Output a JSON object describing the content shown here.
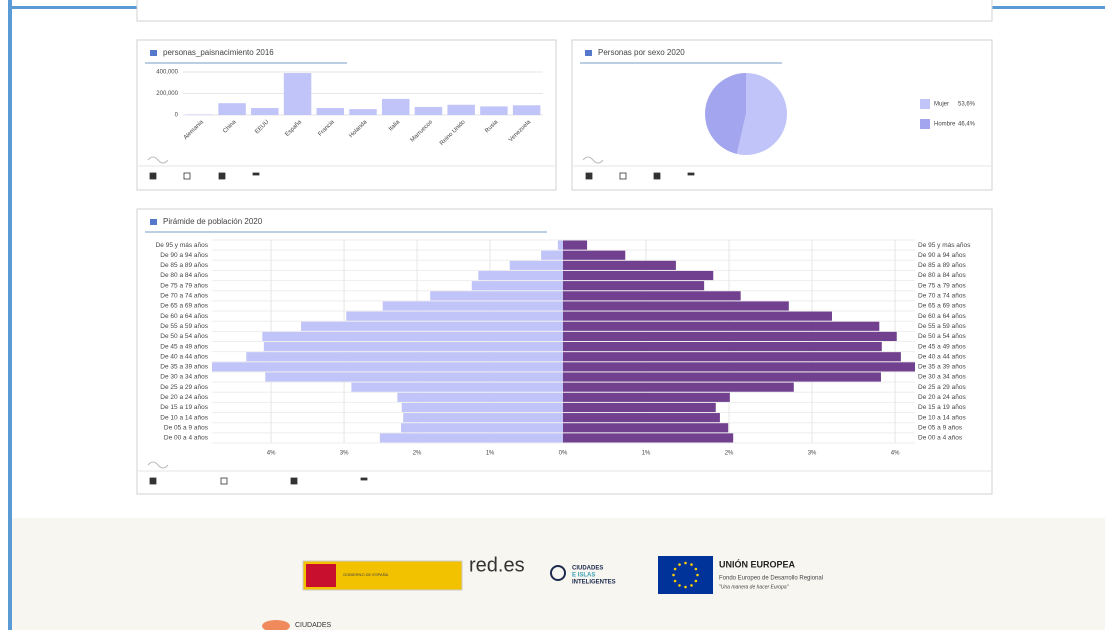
{
  "chart_data": [
    {
      "type": "bar",
      "title": "personas_paisnacimiento 2016",
      "categories": [
        "Alemania",
        "China",
        "EEUU",
        "España",
        "Francia",
        "Holanda",
        "Italia",
        "Marruecos",
        "Reino Unido",
        "Rusia",
        "Venezuela"
      ],
      "values": [
        5000,
        110000,
        65000,
        390000,
        65000,
        55000,
        150000,
        75000,
        95000,
        80000,
        90000
      ],
      "color": "#c0c4f8",
      "ylim": [
        0,
        400000
      ],
      "yticks": [
        0,
        {
          "value": 200000,
          "label": "200,000"
        },
        {
          "value": 400000,
          "label": "400,000"
        }
      ]
    },
    {
      "type": "pie",
      "title": "Personas por sexo 2020",
      "categories": [
        "Mujer",
        "Hombre"
      ],
      "values": [
        53.6,
        46.4
      ],
      "value_labels": [
        "53,6%",
        "46,4%"
      ],
      "colors": [
        "#c0c4f8",
        "#a3a6ee"
      ]
    },
    {
      "type": "pyramid",
      "title": "Pirámide de población 2020",
      "categories": [
        "De 95 y más años",
        "De 90 a 94 años",
        "De 85 a 89 años",
        "De 80 a 84 años",
        "De 75 a 79 años",
        "De 70 a 74 años",
        "De 65 a 69 años",
        "De 60 a 64 años",
        "De 55 a 59 años",
        "De 50 a 54 años",
        "De 45 a 49 años",
        "De 40 a 44 años",
        "De 35 a 39 años",
        "De 30 a 34 años",
        "De 25 a 29 años",
        "De 20 a 24 años",
        "De 15 a 19 años",
        "De 10 a 14 años",
        "De 05 a 9 años",
        "De 00 a 4 años"
      ],
      "series": [
        {
          "color": "#c0c4f8",
          "values": [
            0.07,
            0.3,
            0.73,
            1.16,
            1.25,
            1.82,
            2.47,
            2.97,
            3.59,
            4.12,
            4.1,
            4.34,
            4.81,
            4.08,
            2.9,
            2.27,
            2.21,
            2.19,
            2.22,
            2.51
          ]
        },
        {
          "color": "#71408f",
          "values": [
            0.29,
            0.75,
            1.36,
            1.81,
            1.7,
            2.14,
            2.72,
            3.24,
            3.81,
            4.02,
            3.84,
            4.07,
            4.24,
            3.83,
            2.78,
            2.01,
            1.84,
            1.89,
            1.99,
            2.05
          ]
        }
      ],
      "xlim_left": [
        0,
        4.81
      ],
      "xticks_left": [
        {
          "value": 4,
          "label": "4%"
        },
        {
          "value": 3,
          "label": "3%"
        },
        {
          "value": 2,
          "label": "2%"
        },
        {
          "value": 1,
          "label": "1%"
        }
      ],
      "xlim": [
        0,
        4.24
      ],
      "xticks": [
        {
          "value": 0,
          "label": "0%"
        },
        {
          "value": 1,
          "label": "1%"
        },
        {
          "value": 2,
          "label": "2%"
        },
        {
          "value": 3,
          "label": "3%"
        },
        {
          "value": 4,
          "label": "4%"
        }
      ]
    }
  ],
  "footer": {
    "gobierno": "GOBIERNO DE ESPAÑA",
    "redes": "red.es",
    "ciudades_1": "CIUDADES",
    "ciudades_2": "E ISLAS",
    "ciudades_3": "INTELIGENTES",
    "ue_title": "UNIÓN EUROPEA",
    "ue_fund": "Fondo Europeo de Desarrollo Regional",
    "ue_motto": "\"Una manera de hacer Europa\"",
    "bottom": "CIUDADES"
  }
}
